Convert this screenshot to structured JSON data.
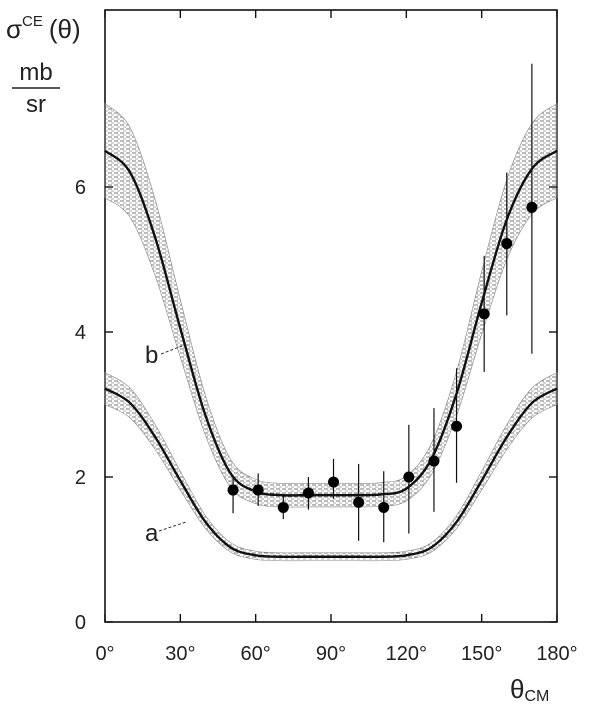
{
  "chart_data": {
    "type": "line",
    "ylabel": "σ^CE (θ)",
    "ylabel_parts": {
      "base": "σ",
      "sup": "CE",
      "arg": "(θ)"
    },
    "yunit": {
      "num": "mb",
      "den": "sr"
    },
    "xlabel": {
      "base": "θ",
      "sub": "CM"
    },
    "xlim": [
      0,
      180
    ],
    "ylim": [
      0,
      8.6
    ],
    "xticks": [
      0,
      30,
      60,
      90,
      120,
      150,
      180
    ],
    "xtick_labels": [
      "0°",
      "30°",
      "60°",
      "90°",
      "120°",
      "150°",
      "180°"
    ],
    "yticks": [
      0,
      2,
      4,
      6
    ],
    "ytick_labels": [
      "0",
      "2",
      "4",
      "6"
    ],
    "grid": false,
    "series": [
      {
        "name": "a",
        "x": [
          0,
          10,
          20,
          30,
          40,
          50,
          60,
          70,
          80,
          90,
          100,
          110,
          120,
          130,
          140,
          150,
          160,
          170,
          180
        ],
        "y": [
          3.22,
          3.02,
          2.55,
          1.95,
          1.38,
          1.03,
          0.92,
          0.9,
          0.9,
          0.9,
          0.9,
          0.9,
          0.92,
          1.03,
          1.38,
          1.95,
          2.55,
          3.02,
          3.22
        ],
        "band": 0.22
      },
      {
        "name": "b",
        "x": [
          0,
          10,
          20,
          30,
          40,
          50,
          60,
          70,
          80,
          90,
          100,
          110,
          120,
          130,
          140,
          150,
          160,
          170,
          180
        ],
        "y": [
          6.5,
          6.2,
          5.3,
          4.05,
          2.85,
          2.05,
          1.8,
          1.75,
          1.75,
          1.75,
          1.75,
          1.76,
          1.84,
          2.25,
          3.15,
          4.4,
          5.55,
          6.25,
          6.5
        ],
        "band": 0.65
      }
    ],
    "points": {
      "x": [
        51,
        61,
        71,
        81,
        91,
        101,
        111,
        121,
        131,
        140,
        151,
        160,
        170
      ],
      "y": [
        1.82,
        1.82,
        1.58,
        1.78,
        1.93,
        1.65,
        1.58,
        2.0,
        2.22,
        2.7,
        4.25,
        5.22,
        5.72
      ],
      "err_low": [
        1.5,
        1.6,
        1.42,
        1.55,
        1.7,
        1.12,
        1.1,
        1.22,
        1.52,
        1.92,
        3.45,
        4.23,
        3.7
      ],
      "err_high": [
        2.0,
        2.05,
        1.75,
        2.0,
        2.25,
        2.18,
        2.08,
        2.72,
        2.95,
        3.5,
        5.05,
        6.2,
        7.7
      ]
    }
  }
}
